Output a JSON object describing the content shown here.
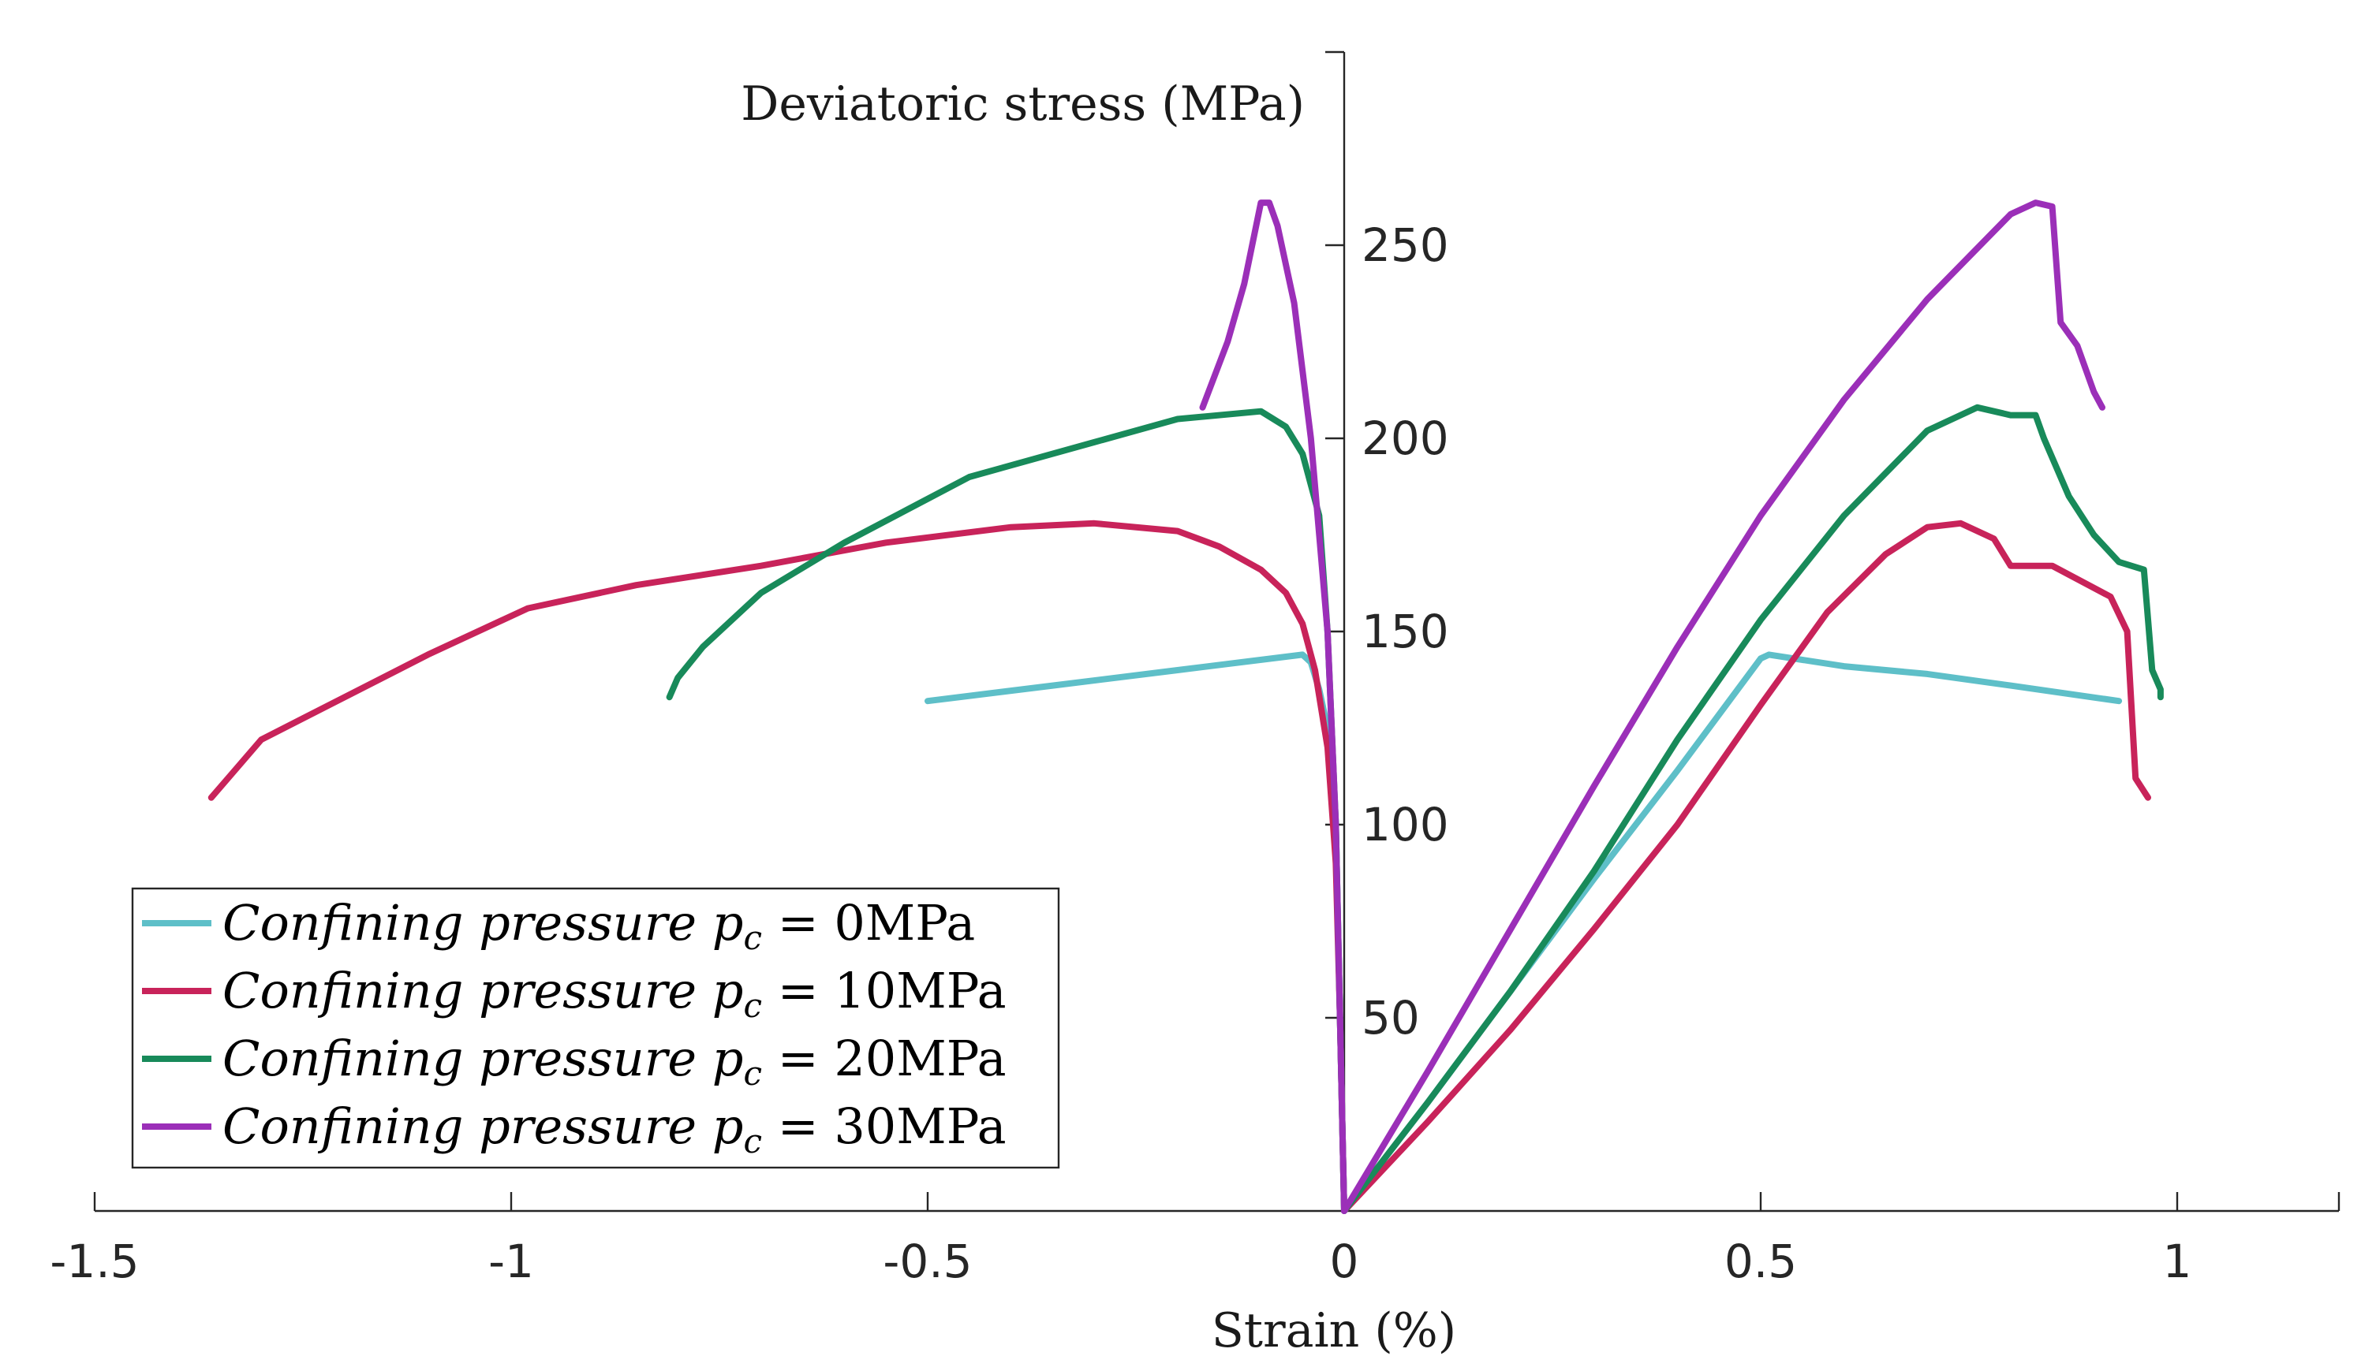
{
  "chart_data": {
    "type": "line",
    "title": "",
    "xlabel": "Strain (%)",
    "ylabel": "Deviatoric stress (MPa)",
    "xlim": [
      -1.5,
      1.2
    ],
    "ylim": [
      0,
      300
    ],
    "x_ticks": [
      -1.5,
      -1,
      -0.5,
      0,
      0.5,
      1
    ],
    "x_tick_labels": [
      "-1.5",
      "-1",
      "-0.5",
      "0",
      "0.5",
      "1"
    ],
    "y_ticks": [
      50,
      100,
      150,
      200,
      250
    ],
    "y_tick_labels": [
      "50",
      "100",
      "150",
      "200",
      "250"
    ],
    "grid": false,
    "legend_position": "bottom-left",
    "series": [
      {
        "name": "Confining pressure p_c = 0MPa",
        "legend_prefix": "Confining pressure ",
        "legend_sub_base": "p",
        "legend_sub": "c",
        "legend_suffix": " = 0MPa",
        "color": "#5ebfc8",
        "axial": [
          [
            0,
            0
          ],
          [
            0.1,
            28
          ],
          [
            0.2,
            57
          ],
          [
            0.3,
            86
          ],
          [
            0.4,
            114
          ],
          [
            0.5,
            143
          ],
          [
            0.51,
            144
          ],
          [
            0.6,
            141
          ],
          [
            0.7,
            139
          ],
          [
            0.8,
            136
          ],
          [
            0.93,
            132
          ]
        ],
        "lateral": [
          [
            0,
            0
          ],
          [
            -0.005,
            50
          ],
          [
            -0.01,
            100
          ],
          [
            -0.015,
            120
          ],
          [
            -0.03,
            135
          ],
          [
            -0.04,
            142
          ],
          [
            -0.05,
            144
          ],
          [
            -0.2,
            140
          ],
          [
            -0.35,
            136
          ],
          [
            -0.5,
            132
          ]
        ]
      },
      {
        "name": "Confining pressure p_c = 10MPa",
        "legend_prefix": "Confining pressure ",
        "legend_sub_base": "p",
        "legend_sub": "c",
        "legend_suffix": " = 10MPa",
        "color": "#c8235a",
        "axial": [
          [
            0,
            0
          ],
          [
            0.1,
            23
          ],
          [
            0.2,
            47
          ],
          [
            0.3,
            73
          ],
          [
            0.4,
            100
          ],
          [
            0.5,
            131
          ],
          [
            0.58,
            155
          ],
          [
            0.65,
            170
          ],
          [
            0.7,
            177
          ],
          [
            0.74,
            178
          ],
          [
            0.78,
            174
          ],
          [
            0.8,
            167
          ],
          [
            0.85,
            167
          ],
          [
            0.92,
            159
          ],
          [
            0.94,
            150
          ],
          [
            0.95,
            112
          ],
          [
            0.965,
            107
          ]
        ],
        "lateral": [
          [
            0,
            0
          ],
          [
            -0.005,
            50
          ],
          [
            -0.01,
            90
          ],
          [
            -0.02,
            120
          ],
          [
            -0.035,
            140
          ],
          [
            -0.05,
            152
          ],
          [
            -0.07,
            160
          ],
          [
            -0.1,
            166
          ],
          [
            -0.15,
            172
          ],
          [
            -0.2,
            176
          ],
          [
            -0.3,
            178
          ],
          [
            -0.4,
            177
          ],
          [
            -0.55,
            173
          ],
          [
            -0.7,
            167
          ],
          [
            -0.85,
            162
          ],
          [
            -0.98,
            156
          ],
          [
            -1.1,
            144
          ],
          [
            -1.2,
            133
          ],
          [
            -1.3,
            122
          ],
          [
            -1.34,
            112
          ],
          [
            -1.36,
            107
          ]
        ]
      },
      {
        "name": "Confining pressure p_c = 20MPa",
        "legend_prefix": "Confining pressure ",
        "legend_sub_base": "p",
        "legend_sub": "c",
        "legend_suffix": " = 20MPa",
        "color": "#188a5a",
        "axial": [
          [
            0,
            0
          ],
          [
            0.1,
            28
          ],
          [
            0.2,
            57
          ],
          [
            0.3,
            88
          ],
          [
            0.4,
            122
          ],
          [
            0.5,
            153
          ],
          [
            0.6,
            180
          ],
          [
            0.7,
            202
          ],
          [
            0.76,
            208
          ],
          [
            0.8,
            206
          ],
          [
            0.83,
            206
          ],
          [
            0.84,
            200
          ],
          [
            0.87,
            185
          ],
          [
            0.9,
            175
          ],
          [
            0.93,
            168
          ],
          [
            0.96,
            166
          ],
          [
            0.97,
            140
          ],
          [
            0.98,
            135
          ],
          [
            0.98,
            133
          ]
        ],
        "lateral": [
          [
            0,
            0
          ],
          [
            -0.005,
            50
          ],
          [
            -0.01,
            100
          ],
          [
            -0.02,
            150
          ],
          [
            -0.03,
            180
          ],
          [
            -0.05,
            196
          ],
          [
            -0.07,
            203
          ],
          [
            -0.1,
            207
          ],
          [
            -0.2,
            205
          ],
          [
            -0.3,
            199
          ],
          [
            -0.45,
            190
          ],
          [
            -0.6,
            173
          ],
          [
            -0.7,
            160
          ],
          [
            -0.77,
            146
          ],
          [
            -0.8,
            138
          ],
          [
            -0.81,
            133
          ]
        ]
      },
      {
        "name": "Confining pressure p_c = 30MPa",
        "legend_prefix": "Confining pressure ",
        "legend_sub_base": "p",
        "legend_sub": "c",
        "legend_suffix": " = 30MPa",
        "color": "#9b2fb8",
        "axial": [
          [
            0,
            0
          ],
          [
            0.1,
            36
          ],
          [
            0.2,
            73
          ],
          [
            0.3,
            110
          ],
          [
            0.4,
            146
          ],
          [
            0.5,
            180
          ],
          [
            0.6,
            210
          ],
          [
            0.7,
            236
          ],
          [
            0.8,
            258
          ],
          [
            0.83,
            261
          ],
          [
            0.85,
            260
          ],
          [
            0.86,
            230
          ],
          [
            0.88,
            224
          ],
          [
            0.9,
            212
          ],
          [
            0.91,
            208
          ]
        ],
        "lateral": [
          [
            0,
            0
          ],
          [
            -0.005,
            50
          ],
          [
            -0.01,
            100
          ],
          [
            -0.02,
            150
          ],
          [
            -0.04,
            200
          ],
          [
            -0.06,
            235
          ],
          [
            -0.08,
            255
          ],
          [
            -0.09,
            261
          ],
          [
            -0.1,
            261
          ],
          [
            -0.12,
            240
          ],
          [
            -0.14,
            225
          ],
          [
            -0.17,
            208
          ]
        ]
      }
    ]
  }
}
